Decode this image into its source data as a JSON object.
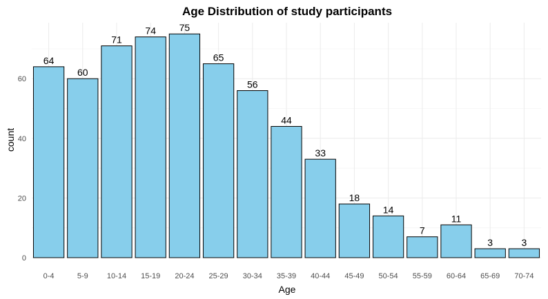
{
  "chart_data": {
    "type": "bar",
    "title": "Age Distribution of study participants",
    "xlabel": "Age",
    "ylabel": "count",
    "categories": [
      "0-4",
      "5-9",
      "10-14",
      "15-19",
      "20-24",
      "25-29",
      "30-34",
      "35-39",
      "40-44",
      "45-49",
      "50-54",
      "55-59",
      "60-64",
      "65-69",
      "70-74"
    ],
    "values": [
      64,
      60,
      71,
      74,
      75,
      65,
      56,
      44,
      33,
      18,
      14,
      7,
      11,
      3,
      3
    ],
    "ylim": [
      0,
      78.75
    ],
    "yticks": [
      0,
      20,
      40,
      60
    ],
    "grid": true,
    "legend": "none",
    "colors": {
      "bar_fill": "#87CEEB",
      "bar_stroke": "#000000"
    }
  }
}
